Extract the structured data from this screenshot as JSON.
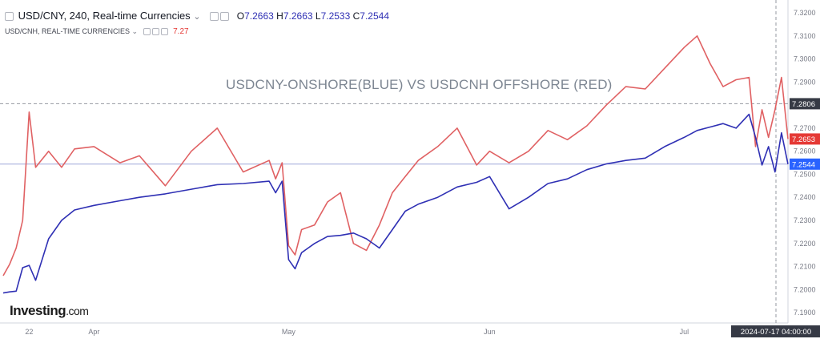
{
  "legend": {
    "main_symbol": "USD/CNY, 240, Real-time Currencies",
    "ohlc_o_label": "O",
    "ohlc_o": "7.2663",
    "ohlc_h_label": "H",
    "ohlc_h": "7.2663",
    "ohlc_l_label": "L",
    "ohlc_l": "7.2533",
    "ohlc_c_label": "C",
    "ohlc_c": "7.2544",
    "second_symbol": "USD/CNH, REAL-TIME CURRENCIES",
    "second_value": "7.27",
    "dropdown_glyph": "⌄"
  },
  "annotation": "USDCNY-ONSHORE(BLUE) VS USDCNH OFFSHORE (RED)",
  "watermark": {
    "brand": "Investing",
    "suffix": ".com"
  },
  "crosshair": {
    "price_label": "7.2806",
    "time_label": "2024-07-17 04:00:00"
  },
  "colors": {
    "onshore": "#2f30b4",
    "offshore": "#e06163",
    "last_red_bg": "#e53935",
    "last_blue_bg": "#2962ff",
    "crosshair_bg": "#363a45"
  },
  "chart_data": {
    "type": "line",
    "title": "USDCNY-ONSHORE(BLUE) VS USDCNH OFFSHORE (RED)",
    "ylim": [
      7.1855,
      7.3235
    ],
    "y_ticks": [
      "7.3200",
      "7.3100",
      "7.3000",
      "7.2900",
      "7.2700",
      "7.2600",
      "7.2500",
      "7.2400",
      "7.2300",
      "7.2200",
      "7.2100",
      "7.2000",
      "7.1900"
    ],
    "x_ticks": [
      "22",
      "Apr",
      "May",
      "Jun",
      "Jul"
    ],
    "x_tick_dates": [
      "2024-03-22",
      "2024-04-01",
      "2024-05-01",
      "2024-06-01",
      "2024-07-01"
    ],
    "x_range": [
      "2024-03-18",
      "2024-07-17"
    ],
    "grid": false,
    "last_values": {
      "USD/CNH": "7.2653",
      "USD/CNY": "7.2544"
    },
    "series": [
      {
        "name": "USD/CNY",
        "x": [
          "2024-03-18",
          "2024-03-19",
          "2024-03-20",
          "2024-03-21",
          "2024-03-22",
          "2024-03-23",
          "2024-03-25",
          "2024-03-27",
          "2024-03-29",
          "2024-04-01",
          "2024-04-05",
          "2024-04-08",
          "2024-04-12",
          "2024-04-16",
          "2024-04-20",
          "2024-04-24",
          "2024-04-28",
          "2024-04-29",
          "2024-04-30",
          "2024-05-01",
          "2024-05-02",
          "2024-05-03",
          "2024-05-05",
          "2024-05-07",
          "2024-05-09",
          "2024-05-11",
          "2024-05-13",
          "2024-05-15",
          "2024-05-17",
          "2024-05-19",
          "2024-05-21",
          "2024-05-24",
          "2024-05-27",
          "2024-05-30",
          "2024-06-01",
          "2024-06-04",
          "2024-06-07",
          "2024-06-10",
          "2024-06-13",
          "2024-06-16",
          "2024-06-19",
          "2024-06-22",
          "2024-06-25",
          "2024-06-28",
          "2024-07-01",
          "2024-07-03",
          "2024-07-05",
          "2024-07-07",
          "2024-07-09",
          "2024-07-11",
          "2024-07-12",
          "2024-07-13",
          "2024-07-14",
          "2024-07-15",
          "2024-07-16",
          "2024-07-17"
        ],
        "y": [
          7.1985,
          7.199,
          7.1993,
          7.2095,
          7.2105,
          7.204,
          7.222,
          7.23,
          7.2345,
          7.2365,
          7.2385,
          7.24,
          7.2415,
          7.2435,
          7.2455,
          7.246,
          7.247,
          7.242,
          7.247,
          7.213,
          7.209,
          7.216,
          7.22,
          7.223,
          7.2235,
          7.2245,
          7.222,
          7.218,
          7.226,
          7.234,
          7.237,
          7.24,
          7.2445,
          7.2465,
          7.249,
          7.235,
          7.24,
          7.246,
          7.248,
          7.252,
          7.2545,
          7.256,
          7.257,
          7.262,
          7.266,
          7.269,
          7.2705,
          7.272,
          7.27,
          7.276,
          7.266,
          7.254,
          7.262,
          7.251,
          7.268,
          7.2544
        ]
      },
      {
        "name": "USD/CNH",
        "x": [
          "2024-03-18",
          "2024-03-19",
          "2024-03-20",
          "2024-03-21",
          "2024-03-22",
          "2024-03-23",
          "2024-03-25",
          "2024-03-27",
          "2024-03-29",
          "2024-04-01",
          "2024-04-05",
          "2024-04-08",
          "2024-04-12",
          "2024-04-16",
          "2024-04-20",
          "2024-04-24",
          "2024-04-28",
          "2024-04-29",
          "2024-04-30",
          "2024-05-01",
          "2024-05-02",
          "2024-05-03",
          "2024-05-05",
          "2024-05-07",
          "2024-05-09",
          "2024-05-11",
          "2024-05-13",
          "2024-05-15",
          "2024-05-17",
          "2024-05-19",
          "2024-05-21",
          "2024-05-24",
          "2024-05-27",
          "2024-05-30",
          "2024-06-01",
          "2024-06-04",
          "2024-06-07",
          "2024-06-10",
          "2024-06-13",
          "2024-06-16",
          "2024-06-19",
          "2024-06-22",
          "2024-06-25",
          "2024-06-28",
          "2024-07-01",
          "2024-07-03",
          "2024-07-05",
          "2024-07-07",
          "2024-07-09",
          "2024-07-11",
          "2024-07-12",
          "2024-07-13",
          "2024-07-14",
          "2024-07-15",
          "2024-07-16",
          "2024-07-17"
        ],
        "y": [
          7.206,
          7.211,
          7.218,
          7.23,
          7.277,
          7.253,
          7.26,
          7.253,
          7.261,
          7.262,
          7.255,
          7.258,
          7.245,
          7.26,
          7.27,
          7.251,
          7.256,
          7.248,
          7.255,
          7.219,
          7.215,
          7.226,
          7.228,
          7.238,
          7.242,
          7.22,
          7.217,
          7.228,
          7.242,
          7.249,
          7.256,
          7.262,
          7.27,
          7.254,
          7.26,
          7.255,
          7.26,
          7.269,
          7.265,
          7.271,
          7.28,
          7.288,
          7.287,
          7.296,
          7.305,
          7.31,
          7.298,
          7.288,
          7.291,
          7.292,
          7.262,
          7.278,
          7.266,
          7.278,
          7.292,
          7.2653
        ]
      }
    ]
  }
}
